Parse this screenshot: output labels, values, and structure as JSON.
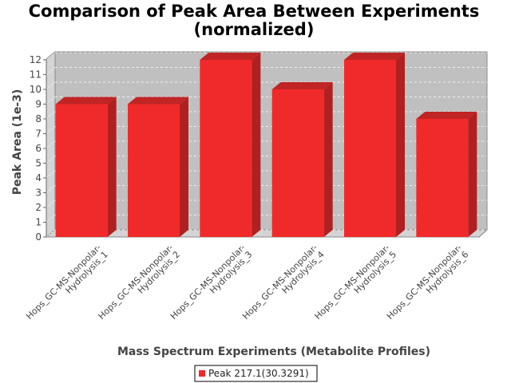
{
  "chart_data": {
    "type": "bar",
    "title_lines": [
      "Comparison of Peak Area Between Experiments",
      "(normalized)"
    ],
    "xlabel": "Mass Spectrum Experiments (Metabolite Profiles)",
    "ylabel": "Peak Area (1e-3)",
    "categories": [
      [
        "Hops_GC-MS-Nonpolar-",
        "Hydrolysis_1"
      ],
      [
        "Hops_GC-MS-Nonpolar-",
        "Hydrolysis_2"
      ],
      [
        "Hops_GC-MS-Nonpolar-",
        "Hydrolysis_3"
      ],
      [
        "Hops_GC-MS-Nonpolar-",
        "Hydrolysis_4"
      ],
      [
        "Hops_GC-MS-Nonpolar-",
        "Hydrolysis_5"
      ],
      [
        "Hops_GC-MS-Nonpolar-",
        "Hydrolysis_6"
      ]
    ],
    "series": [
      {
        "name": "Peak 217.1(30.3291)",
        "values": [
          9,
          9,
          12,
          10,
          12,
          8
        ]
      }
    ],
    "ylim": [
      0,
      12
    ],
    "yticks": [
      "0",
      "1",
      "2",
      "3",
      "4",
      "5",
      "6",
      "7",
      "8",
      "9",
      "10",
      "11",
      "12"
    ],
    "grid": true,
    "legend_position": "bottom",
    "colors": {
      "bar_front": "#f02a2a",
      "bar_side": "#b02020",
      "bar_top": "#c02424",
      "plot_bg": "#c0c0c0",
      "plot_wall": "#d4d4d4"
    }
  }
}
